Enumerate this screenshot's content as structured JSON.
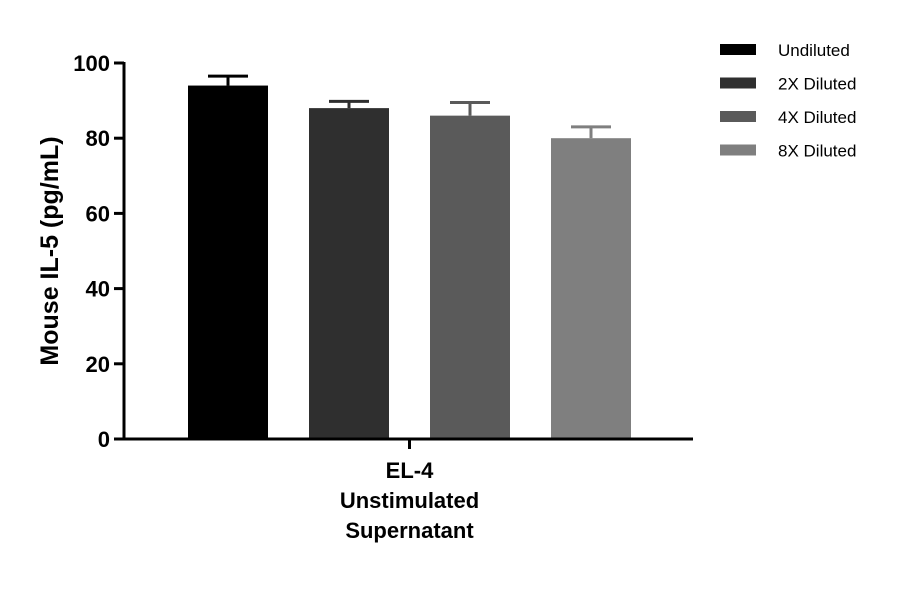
{
  "chart_data": {
    "type": "bar",
    "title": "",
    "xlabel": "",
    "ylabel": "Mouse IL-5 (pg/mL)",
    "ylim": [
      0,
      100
    ],
    "yticks": [
      0,
      20,
      40,
      60,
      80,
      100
    ],
    "grid": false,
    "legend_position": "top-right",
    "category_label_lines": [
      "EL-4",
      "Unstimulated",
      "Supernatant"
    ],
    "series": [
      {
        "name": "Undiluted",
        "value": 94,
        "error": 2.5,
        "color": "#000000"
      },
      {
        "name": "2X Diluted",
        "value": 88,
        "error": 1.8,
        "color": "#2f2f2f"
      },
      {
        "name": "4X Diluted",
        "value": 86,
        "error": 3.5,
        "color": "#5a5a5a"
      },
      {
        "name": "8X Diluted",
        "value": 80,
        "error": 3.0,
        "color": "#7f7f7f"
      }
    ]
  }
}
